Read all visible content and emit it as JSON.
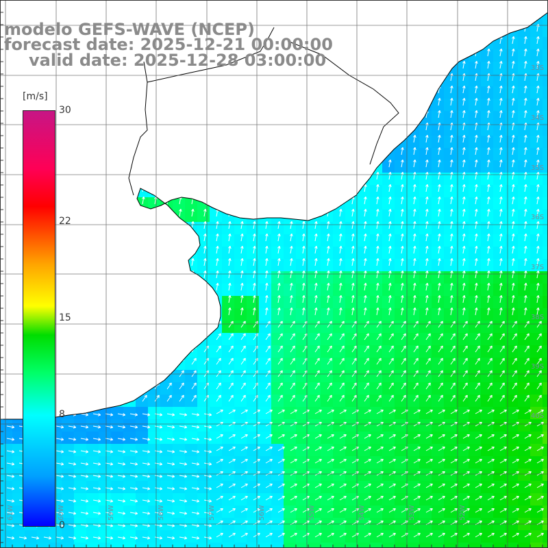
{
  "title": {
    "line1": "modelo GEFS-WAVE (NCEP)",
    "line2": "forecast date: 2025-12-21 00:00:00",
    "line3": "valid date: 2025-12-28 03:00:00"
  },
  "colorbar": {
    "unit": "[m/s]",
    "min": 0,
    "max": 30,
    "ticks": [
      {
        "value": 30,
        "label": "30"
      },
      {
        "value": 22,
        "label": "22"
      },
      {
        "value": 15,
        "label": "15"
      },
      {
        "value": 8,
        "label": "8"
      },
      {
        "value": 0,
        "label": "0"
      }
    ],
    "colors": [
      "#0000ff",
      "#00a0ff",
      "#00ffff",
      "#00ff66",
      "#00dd00",
      "#ffff00",
      "#ffa500",
      "#ff0000",
      "#ff0055",
      "#c71585"
    ]
  },
  "grid": {
    "lat_labels": [
      "33S",
      "34S",
      "35S",
      "36S",
      "37S",
      "38S",
      "39S",
      "40S"
    ],
    "lon_labels": [
      "61W",
      "60W",
      "59W",
      "58W",
      "57W",
      "56W",
      "55W",
      "54W",
      "53W",
      "52W"
    ]
  },
  "colors": {
    "land": "#ffffff",
    "coast": "#000000",
    "grid_line": "#555555",
    "arrow": "#ffffff",
    "title": "#8a8a8a"
  }
}
